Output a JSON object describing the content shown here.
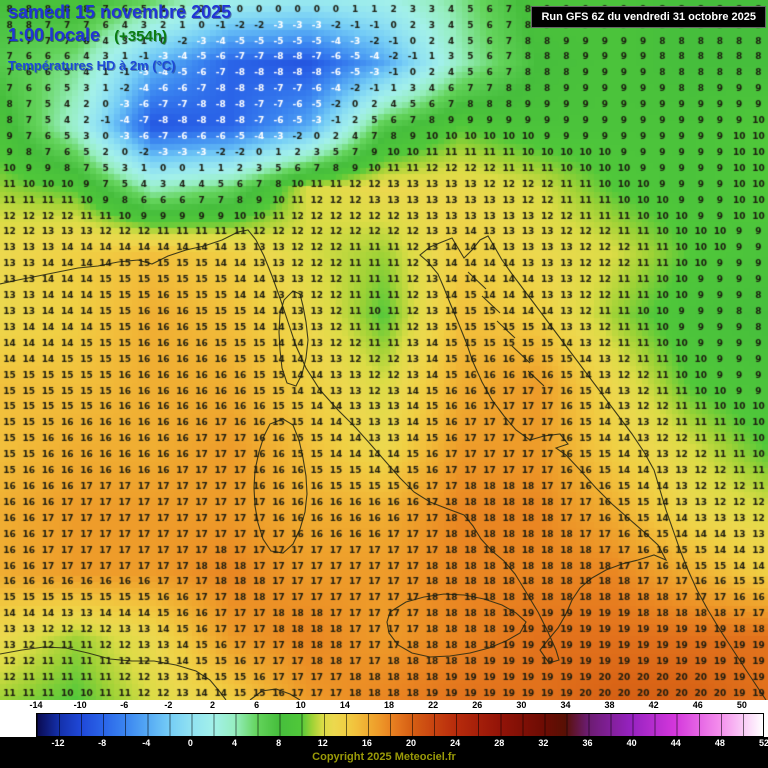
{
  "header": {
    "date_line": "samedi 15 novembre 2025",
    "time_line": "1:00 locale",
    "offset_label": "(+354h)",
    "variable_line": "Températures HD à 2m (°C)"
  },
  "run_box": {
    "text": "Run GFS 6Z du vendredi 31 octobre 2025"
  },
  "footer": {
    "copyright": "Copyright 2025 Meteociel.fr"
  },
  "legend": {
    "unit_min": -14,
    "unit_max": 52,
    "top_labels": [
      -14,
      -10,
      -6,
      -2,
      2,
      6,
      10,
      14,
      18,
      22,
      26,
      30,
      34,
      38,
      42,
      46,
      50
    ],
    "bottom_labels": [
      -12,
      -8,
      -4,
      0,
      4,
      8,
      12,
      16,
      20,
      24,
      28,
      32,
      36,
      40,
      44,
      48,
      52
    ],
    "color_scale": [
      {
        "t": -14,
        "c": "#0a0a50"
      },
      {
        "t": -12,
        "c": "#1430aa"
      },
      {
        "t": -10,
        "c": "#1f48d8"
      },
      {
        "t": -8,
        "c": "#2a64e8"
      },
      {
        "t": -6,
        "c": "#3a84f0"
      },
      {
        "t": -4,
        "c": "#54a8f4"
      },
      {
        "t": -2,
        "c": "#74ccf6"
      },
      {
        "t": 0,
        "c": "#90e2f2"
      },
      {
        "t": 2,
        "c": "#a2f0ea"
      },
      {
        "t": 4,
        "c": "#96eec0"
      },
      {
        "t": 6,
        "c": "#64d45c"
      },
      {
        "t": 8,
        "c": "#46be3c"
      },
      {
        "t": 10,
        "c": "#50c83a"
      },
      {
        "t": 11,
        "c": "#9ed236"
      },
      {
        "t": 12,
        "c": "#dcdc46"
      },
      {
        "t": 13,
        "c": "#ecd84e"
      },
      {
        "t": 14,
        "c": "#f0d044"
      },
      {
        "t": 15,
        "c": "#f2c03c"
      },
      {
        "t": 16,
        "c": "#f0ae32"
      },
      {
        "t": 17,
        "c": "#ee9c2a"
      },
      {
        "t": 18,
        "c": "#ea8622"
      },
      {
        "t": 19,
        "c": "#e2721c"
      },
      {
        "t": 20,
        "c": "#d66014"
      },
      {
        "t": 22,
        "c": "#c84410"
      },
      {
        "t": 24,
        "c": "#b82c0c"
      },
      {
        "t": 28,
        "c": "#941408"
      },
      {
        "t": 32,
        "c": "#6e0c04"
      },
      {
        "t": 34,
        "c": "#581004"
      },
      {
        "t": 36,
        "c": "#6a1c6e"
      },
      {
        "t": 40,
        "c": "#9622c0"
      },
      {
        "t": 44,
        "c": "#d437dc"
      },
      {
        "t": 48,
        "c": "#f48cec"
      },
      {
        "t": 52,
        "c": "#ffffff"
      }
    ]
  },
  "chart_data": {
    "type": "heatmap",
    "title": "Températures HD à 2m (°C)",
    "valid_time": "samedi 15 novembre 2025 1:00 locale (+354h)",
    "model_run": "Run GFS 6Z du vendredi 31 octobre 2025",
    "units": "°C",
    "scale_range": [
      -14,
      52
    ],
    "field_sample_note": "coarse 11x12 sample of the plotted 2m temperature field, left to right / top to bottom; cold Alpine core approx -9 to -11, Po valley 12-13, Tyrrhenian and Adriatic seas 15-18, far south seas 19-20, Balkans 8-10",
    "grid_x": [
      0,
      0.1,
      0.2,
      0.3,
      0.4,
      0.5,
      0.6,
      0.7,
      0.8,
      0.9,
      1.0
    ],
    "grid_y": [
      0,
      0.09,
      0.18,
      0.27,
      0.36,
      0.45,
      0.55,
      0.64,
      0.73,
      0.82,
      0.91,
      1.0
    ],
    "values": [
      [
        8,
        9,
        6,
        2,
        1,
        2,
        5,
        9,
        9,
        8,
        8
      ],
      [
        7,
        5,
        -3,
        -8,
        -9,
        -4,
        4,
        8,
        9,
        8,
        8
      ],
      [
        9,
        3,
        -9,
        -8,
        -4,
        7,
        10,
        9,
        9,
        9,
        10
      ],
      [
        11,
        10,
        4,
        6,
        12,
        13,
        13,
        12,
        10,
        9,
        10
      ],
      [
        13,
        14,
        15,
        14,
        12,
        11,
        14,
        13,
        12,
        10,
        9
      ],
      [
        13,
        14,
        16,
        15,
        13,
        10,
        15,
        14,
        11,
        9,
        8
      ],
      [
        15,
        15,
        16,
        16,
        14,
        12,
        16,
        17,
        13,
        10,
        9
      ],
      [
        15,
        16,
        16,
        17,
        15,
        13,
        17,
        17,
        14,
        12,
        10
      ],
      [
        16,
        17,
        17,
        17,
        16,
        16,
        18,
        18,
        16,
        13,
        12
      ],
      [
        16,
        17,
        17,
        18,
        17,
        17,
        18,
        18,
        18,
        16,
        14
      ],
      [
        13,
        11,
        13,
        17,
        18,
        17,
        18,
        19,
        19,
        19,
        19
      ],
      [
        11,
        10,
        12,
        14,
        17,
        18,
        19,
        19,
        20,
        20,
        19
      ]
    ]
  },
  "map": {
    "number_grid": {
      "cols": 40,
      "rows": 44
    },
    "cold_text_threshold": -3,
    "number_color": "#1c1c10",
    "cold_number_color": "#ffffff"
  }
}
